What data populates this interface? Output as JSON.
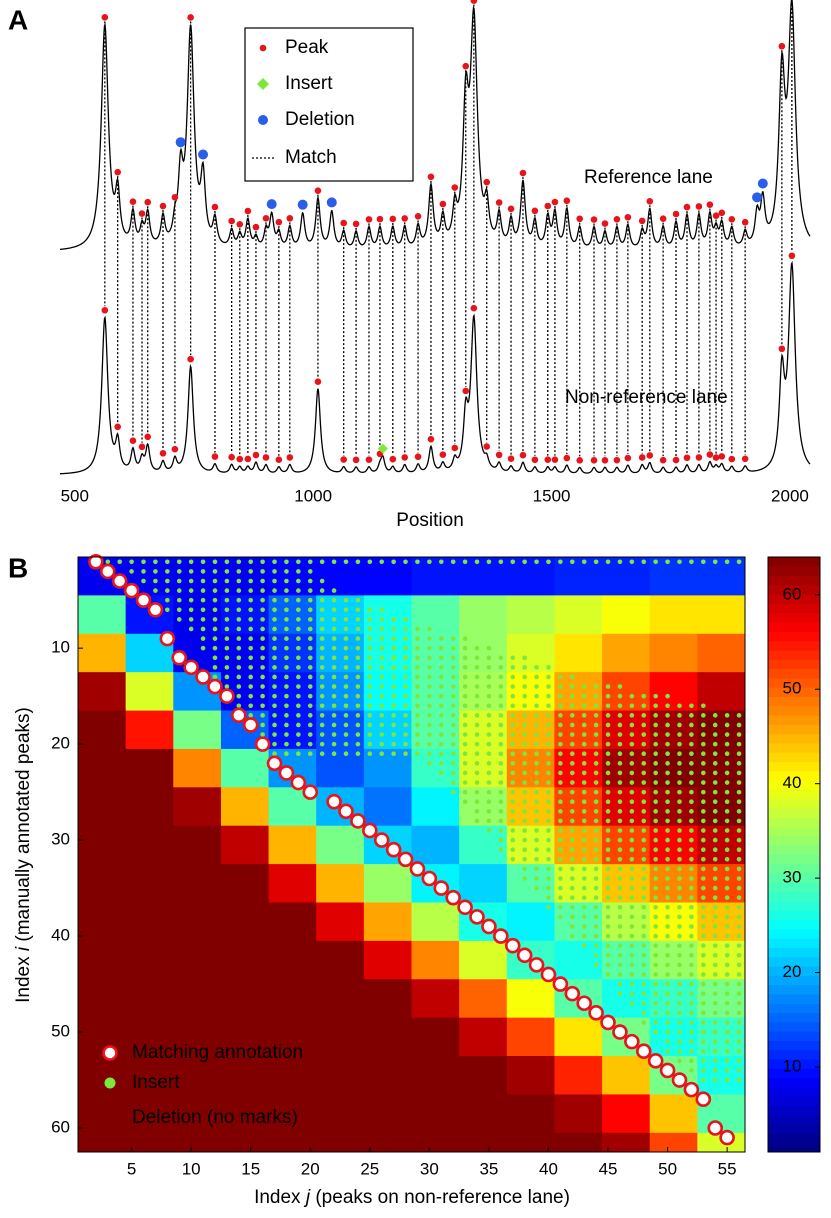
{
  "chart_data": [
    {
      "type": "peaks",
      "panel": "A",
      "xlabel": "Position",
      "xlim": [
        469,
        2042
      ],
      "xticks": [
        500,
        1000,
        1500,
        2000
      ],
      "legend": [
        "Peak",
        "Insert",
        "Deletion",
        "Match"
      ],
      "lanes": [
        "Reference lane",
        "Non-reference lane"
      ],
      "colors": {
        "peak": "#e8141c",
        "insert": "#7ee83a",
        "deletion": "#2a5ee8",
        "trace": "#000000"
      },
      "x": [
        563,
        590,
        622,
        641,
        653,
        685,
        710,
        743,
        794,
        829,
        846,
        863,
        880,
        901,
        928,
        951,
        1010,
        1064,
        1090,
        1117,
        1140,
        1167,
        1192,
        1220,
        1247,
        1272,
        1297,
        1320,
        1337,
        1364,
        1390,
        1415,
        1440,
        1465,
        1492,
        1507,
        1532,
        1559,
        1589,
        1612,
        1637,
        1660,
        1690,
        1706,
        1734,
        1761,
        1784,
        1809,
        1832,
        1845,
        1857,
        1878,
        1906,
        1983,
        2004
      ],
      "reference": [
        102,
        22,
        15,
        8,
        15,
        13,
        8,
        99,
        12,
        8,
        6,
        13,
        5,
        8,
        7,
        10,
        23,
        8,
        8,
        10,
        10,
        10,
        10,
        10,
        28,
        13,
        15,
        58,
        101,
        16,
        14,
        12,
        30,
        12,
        14,
        16,
        18,
        10,
        10,
        8,
        10,
        11,
        8,
        18,
        10,
        12,
        15,
        15,
        15,
        8,
        11,
        9,
        7,
        73,
        106
      ],
      "non_reference": [
        71,
        13,
        10,
        6,
        12,
        5,
        6,
        49,
        4,
        4,
        3,
        3,
        5,
        4,
        3,
        4,
        39,
        3,
        3,
        3,
        3,
        3,
        4,
        4,
        12,
        4,
        5,
        23,
        70,
        4,
        4,
        3,
        5,
        3,
        3,
        3,
        4,
        3,
        3,
        3,
        3,
        4,
        4,
        5,
        3,
        3,
        4,
        4,
        5,
        3,
        4,
        3,
        3,
        41,
        93
      ],
      "deletions": {
        "x": [
          722,
          769,
          913,
          978,
          1039,
          1931,
          1943
        ],
        "heights": [
          29,
          29,
          15,
          16,
          17,
          14,
          20
        ]
      },
      "insert": {
        "x": [
          1146
        ],
        "heights": [
          7
        ]
      }
    },
    {
      "type": "heatmap",
      "panel": "B",
      "xlabel": [
        "Index ",
        "j",
        " (peaks on non-reference lane)"
      ],
      "ylabel": [
        "Index ",
        "i",
        " (manually annotated peaks)"
      ],
      "xlim": [
        0.5,
        56.5
      ],
      "ylim": [
        0.5,
        62.5
      ],
      "y_inverted": true,
      "xticks": [
        5,
        10,
        15,
        20,
        25,
        30,
        35,
        40,
        45,
        50,
        55
      ],
      "yticks": [
        10,
        20,
        30,
        40,
        50,
        60
      ],
      "j_edges": [
        0.5,
        4.5,
        8.5,
        12.5,
        16.5,
        20.5,
        24.5,
        28.5,
        32.5,
        36.5,
        40.5,
        44.5,
        48.5,
        52.5,
        56.5
      ],
      "i_edges": [
        0.5,
        4.5,
        8.5,
        12.5,
        16.5,
        20.5,
        24.5,
        28.5,
        32.5,
        36.5,
        40.5,
        44.5,
        48.5,
        52.5,
        56.5,
        60.5,
        62.5
      ],
      "values": [
        [
          8,
          8,
          8,
          8,
          9,
          9,
          9,
          10,
          10,
          10,
          11,
          11,
          12,
          12
        ],
        [
          30,
          10,
          8,
          10,
          15,
          22,
          26,
          30,
          34,
          36,
          38,
          40,
          42,
          42
        ],
        [
          45,
          22,
          8,
          8,
          12,
          20,
          26,
          30,
          34,
          38,
          42,
          46,
          48,
          50
        ],
        [
          62,
          38,
          18,
          8,
          10,
          18,
          25,
          30,
          35,
          40,
          46,
          52,
          56,
          60
        ],
        [
          65,
          55,
          32,
          15,
          10,
          14,
          22,
          30,
          38,
          45,
          52,
          58,
          62,
          64
        ],
        [
          65,
          65,
          48,
          30,
          18,
          14,
          18,
          28,
          38,
          48,
          56,
          62,
          64,
          65
        ],
        [
          65,
          65,
          62,
          45,
          30,
          20,
          16,
          24,
          34,
          44,
          52,
          58,
          62,
          64
        ],
        [
          65,
          65,
          65,
          60,
          45,
          32,
          22,
          20,
          28,
          38,
          46,
          52,
          56,
          60
        ],
        [
          65,
          65,
          65,
          65,
          58,
          45,
          34,
          24,
          22,
          30,
          38,
          44,
          48,
          52
        ],
        [
          65,
          65,
          65,
          65,
          65,
          58,
          46,
          36,
          26,
          24,
          30,
          36,
          40,
          44
        ],
        [
          65,
          65,
          65,
          65,
          65,
          65,
          58,
          48,
          38,
          28,
          26,
          30,
          34,
          38
        ],
        [
          65,
          65,
          65,
          65,
          65,
          65,
          65,
          60,
          50,
          40,
          30,
          26,
          28,
          32
        ],
        [
          65,
          65,
          65,
          65,
          65,
          65,
          65,
          65,
          60,
          52,
          42,
          32,
          26,
          28
        ],
        [
          65,
          65,
          65,
          65,
          65,
          65,
          65,
          65,
          65,
          62,
          54,
          44,
          32,
          26
        ],
        [
          65,
          65,
          65,
          65,
          65,
          65,
          65,
          65,
          65,
          65,
          62,
          56,
          44,
          30
        ],
        [
          65,
          65,
          65,
          65,
          65,
          65,
          65,
          65,
          65,
          65,
          65,
          62,
          52,
          38
        ]
      ],
      "colorbar": {
        "clim": [
          1,
          64
        ],
        "ticks": [
          10,
          20,
          30,
          40,
          50,
          60
        ],
        "colormap": "jet"
      },
      "matches": {
        "j": [
          2,
          3,
          4,
          5,
          6,
          7,
          8,
          9,
          10,
          11,
          12,
          13,
          14,
          15,
          16,
          17,
          18,
          19,
          20,
          22,
          23,
          24,
          25,
          26,
          27,
          28,
          29,
          30,
          31,
          32,
          33,
          34,
          35,
          36,
          37,
          38,
          39,
          40,
          41,
          42,
          43,
          44,
          45,
          46,
          47,
          48,
          49,
          50,
          51,
          52,
          53,
          54,
          55
        ],
        "i": [
          1,
          2,
          3,
          4,
          5,
          6,
          9,
          11,
          12,
          13,
          14,
          15,
          17,
          18,
          20,
          22,
          23,
          24,
          25,
          26,
          27,
          28,
          29,
          30,
          31,
          32,
          33,
          34,
          35,
          36,
          37,
          38,
          39,
          40,
          41,
          42,
          43,
          44,
          45,
          46,
          47,
          48,
          49,
          50,
          51,
          52,
          53,
          54,
          55,
          56,
          57,
          60,
          61
        ]
      },
      "insert_rows": [
        [
          1,
          3,
          56
        ],
        [
          2,
          5,
          20
        ],
        [
          3,
          6,
          21
        ],
        [
          4,
          7,
          22
        ],
        [
          5,
          8,
          24
        ],
        [
          6,
          8,
          26
        ],
        [
          7,
          9,
          28
        ],
        [
          8,
          10,
          30
        ],
        [
          9,
          11,
          33
        ],
        [
          10,
          11,
          35
        ],
        [
          11,
          12,
          38
        ],
        [
          12,
          12,
          40
        ],
        [
          13,
          12,
          42
        ],
        [
          14,
          13,
          46
        ],
        [
          15,
          14,
          50
        ],
        [
          16,
          14,
          53
        ],
        [
          17,
          15,
          56
        ],
        [
          18,
          15,
          56
        ],
        [
          19,
          16,
          56
        ],
        [
          20,
          16,
          56
        ],
        [
          21,
          17,
          56
        ],
        [
          22,
          30,
          56
        ],
        [
          23,
          31,
          56
        ],
        [
          24,
          32,
          56
        ],
        [
          25,
          32,
          56
        ],
        [
          26,
          33,
          56
        ],
        [
          27,
          34,
          56
        ],
        [
          28,
          34,
          56
        ],
        [
          29,
          35,
          56
        ],
        [
          30,
          36,
          56
        ],
        [
          31,
          36,
          56
        ],
        [
          32,
          37,
          56
        ],
        [
          33,
          38,
          56
        ],
        [
          34,
          38,
          56
        ],
        [
          35,
          39,
          56
        ],
        [
          36,
          40,
          56
        ],
        [
          37,
          40,
          56
        ],
        [
          38,
          41,
          56
        ],
        [
          39,
          42,
          56
        ],
        [
          40,
          42,
          56
        ],
        [
          41,
          43,
          56
        ],
        [
          42,
          44,
          56
        ],
        [
          43,
          44,
          56
        ],
        [
          44,
          45,
          56
        ],
        [
          45,
          46,
          56
        ],
        [
          46,
          46,
          56
        ],
        [
          47,
          47,
          56
        ],
        [
          48,
          48,
          56
        ],
        [
          49,
          48,
          56
        ],
        [
          50,
          49,
          56
        ],
        [
          51,
          50,
          56
        ],
        [
          52,
          50,
          56
        ],
        [
          53,
          51,
          56
        ],
        [
          54,
          52,
          56
        ],
        [
          55,
          53,
          56
        ]
      ],
      "legend": [
        "Matching annotation",
        "Insert",
        "Deletion (no marks)"
      ],
      "colors": {
        "match_edge": "#e8141c",
        "match_fill": "#ffffff",
        "insert": "#7ee83a",
        "legend_text": "#ffffff"
      }
    }
  ]
}
